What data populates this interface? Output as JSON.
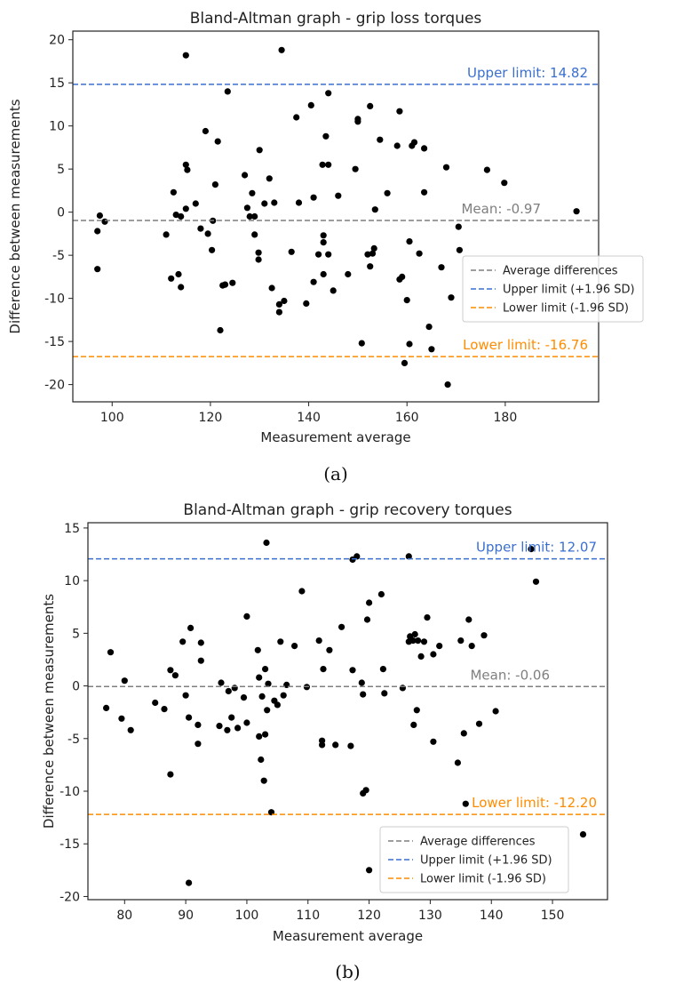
{
  "chart_data": [
    {
      "type": "scatter",
      "title": "Bland-Altman graph - grip loss torques",
      "xlabel": "Measurement average",
      "ylabel": "Difference between measurements",
      "xlim": [
        92,
        199
      ],
      "ylim": [
        -22,
        21
      ],
      "xticks": [
        100,
        120,
        140,
        160,
        180
      ],
      "yticks": [
        -20,
        -15,
        -10,
        -5,
        0,
        5,
        10,
        15,
        20
      ],
      "caption": "(a)",
      "mean": -0.97,
      "upper": 14.82,
      "lower": -16.76,
      "mean_label": "Mean: -0.97",
      "upper_label": "Upper limit: 14.82",
      "lower_label": "Lower limit: -16.76",
      "legend": [
        "Average differences",
        "Upper limit (+1.96 SD)",
        "Lower limit (-1.96 SD)"
      ],
      "legend_position": "center-right",
      "colors": {
        "mean": "#7f7f7f",
        "upper": "#3a6fd0",
        "lower": "#ff8c00",
        "points": "#000000"
      },
      "points": [
        [
          97,
          -2.2
        ],
        [
          97.5,
          -0.4
        ],
        [
          98.5,
          -1.1
        ],
        [
          97,
          -6.6
        ],
        [
          111,
          -2.6
        ],
        [
          112,
          -7.7
        ],
        [
          112.5,
          2.3
        ],
        [
          113,
          -0.3
        ],
        [
          113.5,
          -7.2
        ],
        [
          114,
          -8.7
        ],
        [
          114,
          -0.5
        ],
        [
          115,
          18.2
        ],
        [
          115,
          5.5
        ],
        [
          115.3,
          4.9
        ],
        [
          115,
          0.4
        ],
        [
          117,
          1.0
        ],
        [
          118,
          -1.9
        ],
        [
          119,
          9.4
        ],
        [
          119.5,
          -2.5
        ],
        [
          120.3,
          -4.4
        ],
        [
          120.5,
          -1.0
        ],
        [
          121,
          3.2
        ],
        [
          121.5,
          8.2
        ],
        [
          122,
          -13.7
        ],
        [
          122.5,
          -8.5
        ],
        [
          123,
          -8.4
        ],
        [
          123.5,
          14.0
        ],
        [
          124.5,
          -8.2
        ],
        [
          127,
          4.3
        ],
        [
          127.5,
          0.5
        ],
        [
          128,
          -0.5
        ],
        [
          128.5,
          2.2
        ],
        [
          129,
          -2.6
        ],
        [
          129,
          -0.5
        ],
        [
          129.8,
          -4.7
        ],
        [
          129.8,
          -5.5
        ],
        [
          130,
          7.2
        ],
        [
          131,
          1.0
        ],
        [
          132,
          3.9
        ],
        [
          132.5,
          -8.8
        ],
        [
          133,
          1.1
        ],
        [
          134,
          -11.6
        ],
        [
          134,
          -10.7
        ],
        [
          134.5,
          18.8
        ],
        [
          135,
          -10.3
        ],
        [
          136.5,
          -4.6
        ],
        [
          137.5,
          11.0
        ],
        [
          138,
          1.1
        ],
        [
          139.5,
          -10.6
        ],
        [
          140.5,
          12.4
        ],
        [
          141,
          1.7
        ],
        [
          141,
          -8.1
        ],
        [
          142,
          -4.9
        ],
        [
          142.8,
          5.5
        ],
        [
          143,
          -2.7
        ],
        [
          143,
          -3.5
        ],
        [
          143,
          -7.2
        ],
        [
          143.5,
          8.8
        ],
        [
          144,
          5.5
        ],
        [
          144,
          13.8
        ],
        [
          144,
          -4.9
        ],
        [
          145,
          -9.1
        ],
        [
          146,
          1.9
        ],
        [
          148,
          -7.2
        ],
        [
          149.5,
          5.0
        ],
        [
          150,
          10.8
        ],
        [
          150,
          10.5
        ],
        [
          150.8,
          -15.2
        ],
        [
          152,
          -4.9
        ],
        [
          152.5,
          12.3
        ],
        [
          152.5,
          -6.3
        ],
        [
          153,
          -4.8
        ],
        [
          153.3,
          -4.2
        ],
        [
          153.5,
          0.3
        ],
        [
          154.5,
          8.4
        ],
        [
          156,
          2.2
        ],
        [
          158,
          7.7
        ],
        [
          158.5,
          11.7
        ],
        [
          158.5,
          -7.8
        ],
        [
          159,
          -7.5
        ],
        [
          159.5,
          -17.5
        ],
        [
          160,
          -10.2
        ],
        [
          160.5,
          -3.4
        ],
        [
          160.5,
          -15.3
        ],
        [
          161,
          7.7
        ],
        [
          161.5,
          8.1
        ],
        [
          162.5,
          -4.8
        ],
        [
          163.5,
          7.4
        ],
        [
          163.5,
          2.3
        ],
        [
          164.5,
          -13.3
        ],
        [
          165,
          -15.9
        ],
        [
          167,
          -6.4
        ],
        [
          168,
          5.2
        ],
        [
          168.3,
          -20.0
        ],
        [
          169,
          -9.9
        ],
        [
          170.5,
          -1.7
        ],
        [
          170.7,
          -4.4
        ],
        [
          176.3,
          4.9
        ],
        [
          179.8,
          3.4
        ],
        [
          194.5,
          0.1
        ]
      ]
    },
    {
      "type": "scatter",
      "title": "Bland-Altman graph - grip recovery torques",
      "xlabel": "Measurement average",
      "ylabel": "Difference between measurements",
      "xlim": [
        74,
        159
      ],
      "ylim": [
        -20.3,
        15.5
      ],
      "xticks": [
        80,
        90,
        100,
        110,
        120,
        130,
        140,
        150
      ],
      "yticks": [
        -20,
        -15,
        -10,
        -5,
        0,
        5,
        10,
        15
      ],
      "caption": "(b)",
      "mean": -0.06,
      "upper": 12.07,
      "lower": -12.2,
      "mean_label": "Mean: -0.06",
      "upper_label": "Upper limit: 12.07",
      "lower_label": "Lower limit: -12.20",
      "legend": [
        "Average differences",
        "Upper limit (+1.96 SD)",
        "Lower limit (-1.96 SD)"
      ],
      "legend_position": "lower-right",
      "colors": {
        "mean": "#7f7f7f",
        "upper": "#3a6fd0",
        "lower": "#ff8c00",
        "points": "#000000"
      },
      "points": [
        [
          77,
          -2.1
        ],
        [
          77.7,
          3.2
        ],
        [
          79.5,
          -3.1
        ],
        [
          80,
          0.5
        ],
        [
          81,
          -4.2
        ],
        [
          85,
          -1.6
        ],
        [
          86.5,
          -2.2
        ],
        [
          87.5,
          -8.4
        ],
        [
          87.5,
          1.5
        ],
        [
          88.3,
          1.0
        ],
        [
          89.5,
          4.2
        ],
        [
          90,
          -0.9
        ],
        [
          90.5,
          -3.0
        ],
        [
          90.8,
          5.5
        ],
        [
          90.5,
          -18.7
        ],
        [
          92,
          -5.5
        ],
        [
          92,
          -3.7
        ],
        [
          92.5,
          2.4
        ],
        [
          92.5,
          4.1
        ],
        [
          95.5,
          -3.8
        ],
        [
          95.8,
          0.3
        ],
        [
          96.8,
          -4.2
        ],
        [
          97,
          -0.5
        ],
        [
          97.5,
          -3.0
        ],
        [
          98,
          -0.2
        ],
        [
          98.5,
          -4.0
        ],
        [
          99.5,
          -1.1
        ],
        [
          100,
          6.6
        ],
        [
          100,
          -3.5
        ],
        [
          101.8,
          3.4
        ],
        [
          102,
          -4.8
        ],
        [
          102,
          0.8
        ],
        [
          102.3,
          -7.0
        ],
        [
          102.5,
          -1.0
        ],
        [
          102.8,
          -9.0
        ],
        [
          103,
          -4.6
        ],
        [
          103,
          1.6
        ],
        [
          103.2,
          13.6
        ],
        [
          103.3,
          -2.3
        ],
        [
          103.5,
          0.2
        ],
        [
          104,
          -12.0
        ],
        [
          104.5,
          -1.4
        ],
        [
          105,
          -1.8
        ],
        [
          105.5,
          4.2
        ],
        [
          106,
          -0.9
        ],
        [
          106.5,
          0.1
        ],
        [
          107.8,
          3.8
        ],
        [
          109,
          9.0
        ],
        [
          109.8,
          -0.1
        ],
        [
          111.8,
          4.3
        ],
        [
          112.3,
          -5.2
        ],
        [
          112.3,
          -5.6
        ],
        [
          112.5,
          1.6
        ],
        [
          113.5,
          3.4
        ],
        [
          114.5,
          -5.6
        ],
        [
          115.5,
          5.6
        ],
        [
          117,
          -5.7
        ],
        [
          117.3,
          1.5
        ],
        [
          117.3,
          12.0
        ],
        [
          118,
          12.3
        ],
        [
          118.8,
          0.3
        ],
        [
          119,
          -0.8
        ],
        [
          119,
          -10.2
        ],
        [
          119.5,
          -9.9
        ],
        [
          119.7,
          6.3
        ],
        [
          120,
          7.9
        ],
        [
          120,
          -17.5
        ],
        [
          122,
          8.7
        ],
        [
          122.3,
          1.6
        ],
        [
          122.5,
          -0.7
        ],
        [
          125.5,
          -0.2
        ],
        [
          126.5,
          12.3
        ],
        [
          126.5,
          4.2
        ],
        [
          126.7,
          4.7
        ],
        [
          127.2,
          4.3
        ],
        [
          127.3,
          -3.7
        ],
        [
          127.5,
          4.9
        ],
        [
          127.8,
          -2.3
        ],
        [
          128,
          4.3
        ],
        [
          128.5,
          2.8
        ],
        [
          129,
          4.2
        ],
        [
          129.5,
          6.5
        ],
        [
          130.5,
          -5.3
        ],
        [
          130.5,
          3.0
        ],
        [
          131.5,
          3.8
        ],
        [
          134.5,
          -7.3
        ],
        [
          135,
          4.3
        ],
        [
          135.5,
          -4.5
        ],
        [
          135.8,
          -11.2
        ],
        [
          136.3,
          6.3
        ],
        [
          136.8,
          3.8
        ],
        [
          138,
          -3.6
        ],
        [
          138.8,
          4.8
        ],
        [
          140.7,
          -2.4
        ],
        [
          146.5,
          13.0
        ],
        [
          147.3,
          9.9
        ],
        [
          155,
          -14.1
        ]
      ]
    }
  ]
}
